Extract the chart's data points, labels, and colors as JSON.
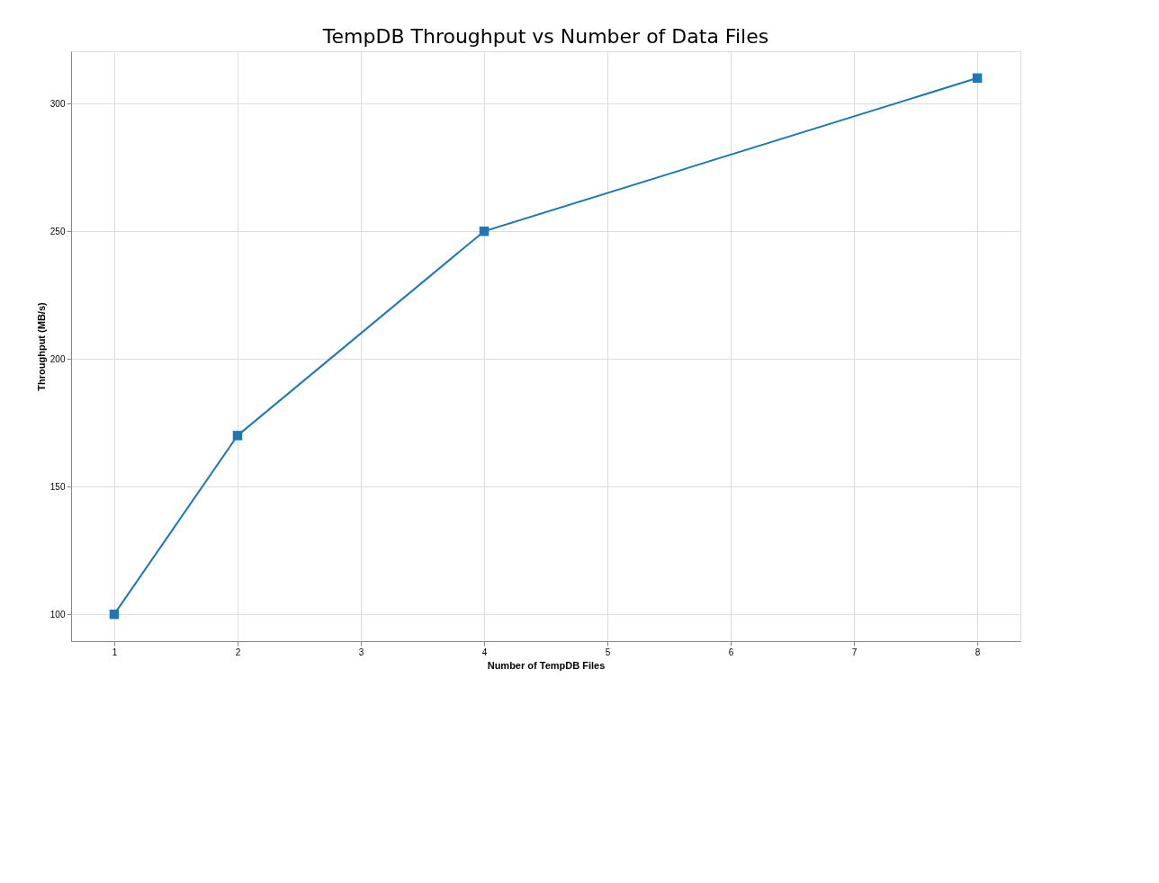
{
  "chart_data": {
    "type": "line",
    "title": "TempDB Throughput vs Number of Data Files",
    "xlabel": "Number of TempDB Files",
    "ylabel": "Throughput (MB/s)",
    "x": [
      1,
      2,
      4,
      8
    ],
    "series": [
      {
        "color": "#1f77b4",
        "values": [
          100,
          170,
          250,
          310
        ]
      }
    ],
    "xlim": [
      0.65,
      8.35
    ],
    "xticks": [
      1,
      2,
      3,
      4,
      5,
      6,
      7,
      8
    ],
    "ylim": [
      89.5,
      320.5
    ],
    "yticks": [
      100,
      150,
      200,
      250,
      300
    ],
    "grid": true,
    "marker": "square",
    "line_style": "solid"
  }
}
